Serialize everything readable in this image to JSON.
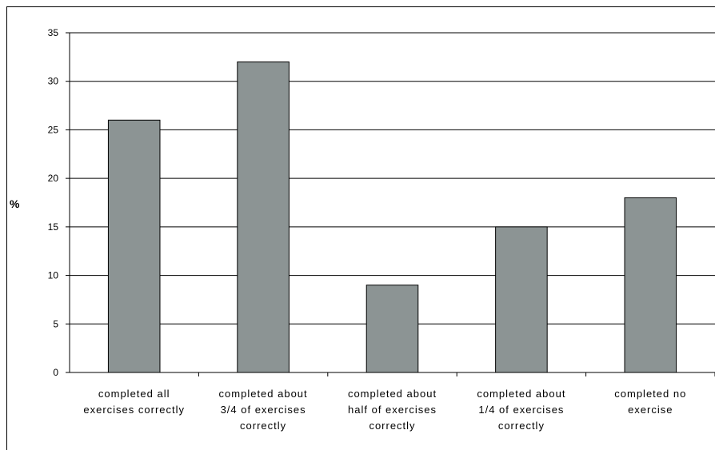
{
  "chart_data": {
    "type": "bar",
    "title": "",
    "xlabel": "",
    "ylabel": "%",
    "ylim": [
      0,
      35
    ],
    "yticks": [
      0,
      5,
      10,
      15,
      20,
      25,
      30,
      35
    ],
    "grid": true,
    "categories": [
      [
        "completed all",
        "exercises correctly"
      ],
      [
        "completed about",
        "3/4 of exercises",
        "correctly"
      ],
      [
        "completed about",
        "half of exercises",
        "correctly"
      ],
      [
        "completed about",
        "1/4 of exercises",
        "correctly"
      ],
      [
        "completed no",
        "exercise"
      ]
    ],
    "values": [
      26,
      32,
      9,
      15,
      18
    ],
    "bar_color": "#8c9494"
  }
}
